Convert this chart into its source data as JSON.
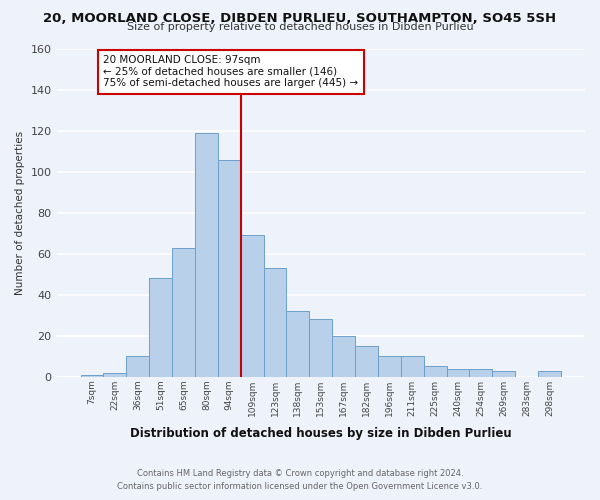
{
  "title": "20, MOORLAND CLOSE, DIBDEN PURLIEU, SOUTHAMPTON, SO45 5SH",
  "subtitle": "Size of property relative to detached houses in Dibden Purlieu",
  "xlabel": "Distribution of detached houses by size in Dibden Purlieu",
  "ylabel": "Number of detached properties",
  "bar_labels": [
    "7sqm",
    "22sqm",
    "36sqm",
    "51sqm",
    "65sqm",
    "80sqm",
    "94sqm",
    "109sqm",
    "123sqm",
    "138sqm",
    "153sqm",
    "167sqm",
    "182sqm",
    "196sqm",
    "211sqm",
    "225sqm",
    "240sqm",
    "254sqm",
    "269sqm",
    "283sqm",
    "298sqm"
  ],
  "bar_values": [
    1,
    2,
    10,
    48,
    63,
    119,
    106,
    69,
    53,
    32,
    28,
    20,
    15,
    10,
    10,
    5,
    4,
    4,
    3,
    0,
    3
  ],
  "bar_color": "#b8d0ea",
  "bar_edge_color": "#6ca0cc",
  "background_color": "#eef2fb",
  "grid_color": "#ffffff",
  "vline_x_index": 6,
  "vline_color": "#cc0000",
  "annotation_text": "20 MOORLAND CLOSE: 97sqm\n← 25% of detached houses are smaller (146)\n75% of semi-detached houses are larger (445) →",
  "annotation_box_color": "#ffffff",
  "annotation_box_edge_color": "#cc0000",
  "footnote1": "Contains HM Land Registry data © Crown copyright and database right 2024.",
  "footnote2": "Contains public sector information licensed under the Open Government Licence v3.0.",
  "ylim": [
    0,
    160
  ],
  "yticks": [
    0,
    20,
    40,
    60,
    80,
    100,
    120,
    140,
    160
  ],
  "title_fontsize": 9.5,
  "subtitle_fontsize": 8.5
}
